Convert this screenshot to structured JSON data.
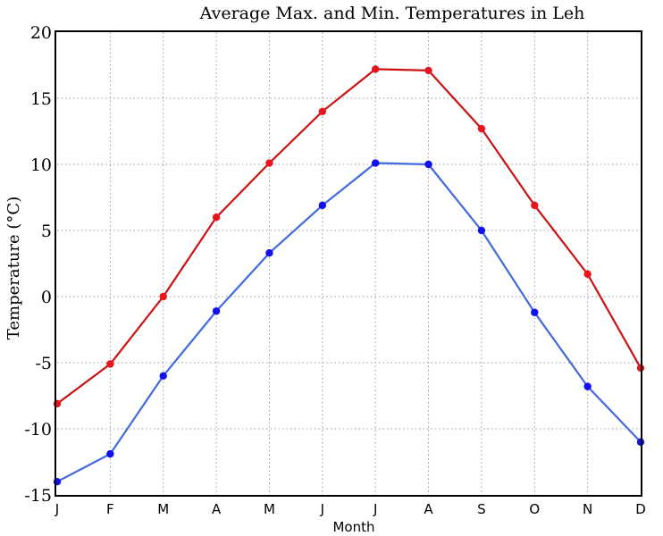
{
  "chart_data": {
    "type": "line",
    "title": "Average Max. and Min. Temperatures in Leh",
    "xlabel": "Month",
    "ylabel": "Temperature (°C)",
    "categories": [
      "J",
      "F",
      "M",
      "A",
      "M",
      "J",
      "J",
      "A",
      "S",
      "O",
      "N",
      "D"
    ],
    "ylim": [
      -15,
      20
    ],
    "yticks": [
      20,
      15,
      10,
      5,
      0,
      -5,
      -10,
      -15
    ],
    "ytick_labels": [
      "20",
      "15",
      "10",
      "5",
      "0",
      "-5",
      "-10",
      "-15"
    ],
    "grid": true,
    "series": [
      {
        "color": "#cc1111",
        "marker_color": "#e8141e",
        "values": [
          -8.1,
          -5.1,
          0.0,
          6.0,
          10.1,
          14.0,
          17.2,
          17.1,
          12.7,
          6.9,
          1.7,
          -5.4
        ]
      },
      {
        "color": "#4169e1",
        "marker_color": "#1111ee",
        "values": [
          -14.0,
          -11.9,
          -6.0,
          -1.1,
          3.3,
          6.9,
          10.1,
          10.0,
          5.0,
          -1.2,
          -6.8,
          -11.0
        ]
      }
    ]
  }
}
